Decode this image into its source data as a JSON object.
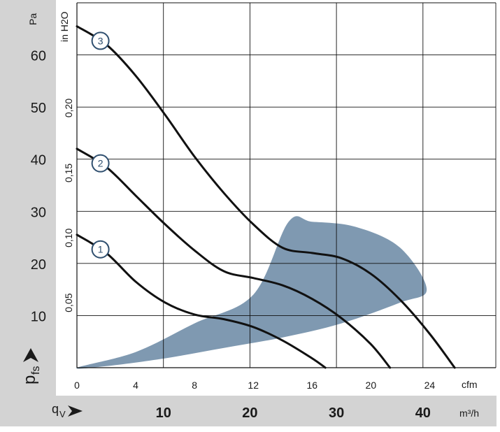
{
  "chart_data": {
    "type": "line",
    "x_unit": "cfm",
    "x_unit_secondary": "m³/h",
    "y_unit": "Pa",
    "y_unit_secondary": "in H2O",
    "y_axis_symbol": "p",
    "y_axis_subscript": "fs",
    "x_axis_symbol": "q",
    "x_axis_subscript": "V",
    "xlim": [
      0,
      28.5
    ],
    "ylim": [
      0,
      70
    ],
    "x_ticks_cfm": [
      "0",
      "4",
      "8",
      "12",
      "16",
      "20",
      "24"
    ],
    "x_ticks_m3h": [
      "10",
      "20",
      "30",
      "40"
    ],
    "y_ticks_pa": [
      "10",
      "20",
      "30",
      "40",
      "50",
      "60"
    ],
    "y_ticks_inh2o": [
      "0,05",
      "0,10",
      "0,15",
      "0,20"
    ],
    "grid": true,
    "series": [
      {
        "marker_label": "1",
        "points": [
          [
            0,
            25.5
          ],
          [
            2,
            22
          ],
          [
            4,
            16.5
          ],
          [
            6,
            12.5
          ],
          [
            8,
            10.2
          ],
          [
            10,
            9.3
          ],
          [
            12,
            7.8
          ],
          [
            14,
            5.2
          ],
          [
            16,
            1.8
          ],
          [
            16.9,
            0
          ]
        ]
      },
      {
        "marker_label": "2",
        "points": [
          [
            0,
            42
          ],
          [
            2,
            38.5
          ],
          [
            4,
            33
          ],
          [
            6,
            27.5
          ],
          [
            8,
            22.5
          ],
          [
            10,
            18.5
          ],
          [
            12,
            17.2
          ],
          [
            14,
            15.8
          ],
          [
            16,
            13.2
          ],
          [
            18,
            9.5
          ],
          [
            20,
            4.5
          ],
          [
            21.3,
            0
          ]
        ]
      },
      {
        "marker_label": "3",
        "points": [
          [
            0,
            65.5
          ],
          [
            2,
            62
          ],
          [
            4,
            56
          ],
          [
            6,
            48.5
          ],
          [
            8,
            40.5
          ],
          [
            10,
            33.5
          ],
          [
            12,
            27.5
          ],
          [
            14,
            23
          ],
          [
            16,
            22
          ],
          [
            18,
            21
          ],
          [
            20,
            18
          ],
          [
            22,
            13
          ],
          [
            24,
            6.5
          ],
          [
            25.7,
            0
          ]
        ]
      }
    ],
    "operating_range": {
      "color": "#7f99b1",
      "points": [
        [
          0,
          0
        ],
        [
          4,
          3
        ],
        [
          8,
          8.5
        ],
        [
          12,
          14
        ],
        [
          14.4,
          28
        ],
        [
          16,
          28
        ],
        [
          19,
          27
        ],
        [
          22,
          23
        ],
        [
          23.8,
          15
        ],
        [
          22,
          12.5
        ],
        [
          18,
          8.5
        ],
        [
          14,
          5.8
        ],
        [
          10,
          3.8
        ],
        [
          6,
          1.8
        ],
        [
          2,
          0.3
        ]
      ]
    },
    "colors": {
      "curve": "#111111",
      "marker": "#2f4f6f",
      "panel": "#d3d3d3",
      "grid": "#111111"
    }
  }
}
